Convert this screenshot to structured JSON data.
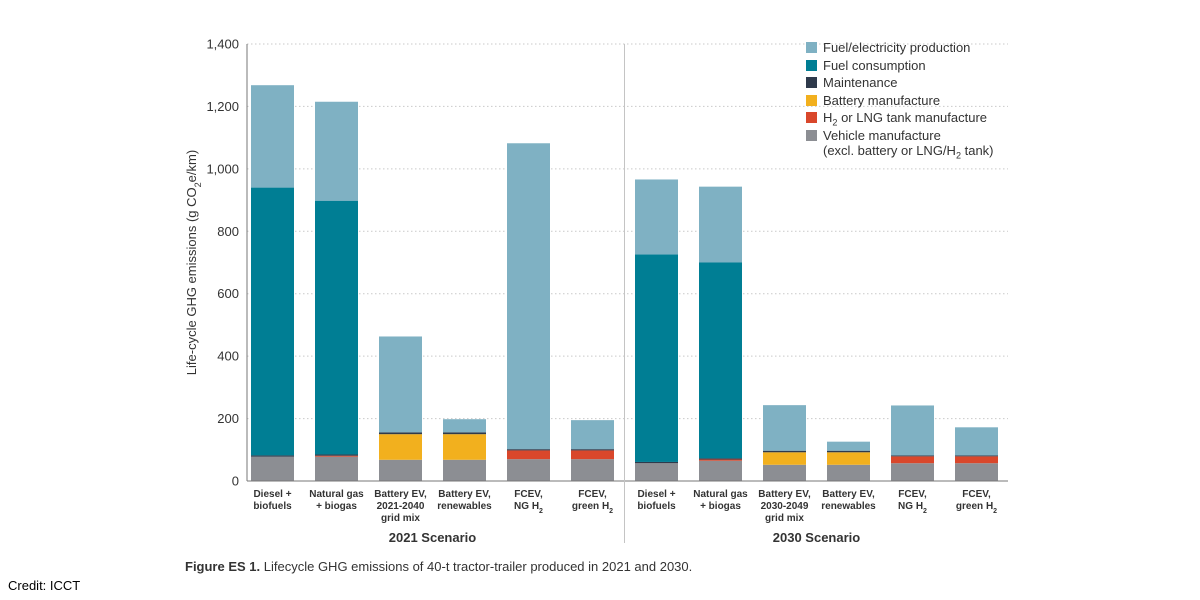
{
  "chart_data": {
    "type": "bar",
    "stacked": true,
    "ylabel": "Life-cycle GHG emissions (g CO2e/km)",
    "ylim": [
      0,
      1400
    ],
    "yticks": [
      "0",
      "200",
      "400",
      "600",
      "800",
      "1,000",
      "1,200",
      "1,400"
    ],
    "grid": true,
    "legend_position": "top-right",
    "groups": [
      {
        "label": "2021 Scenario",
        "categories": [
          "Diesel +\nbiofuels",
          "Natural gas\n+ biogas",
          "Battery EV,\n2021-2040\ngrid mix",
          "Battery EV,\nrenewables",
          "FCEV,\nNG H2",
          "FCEV,\ngreen H2"
        ]
      },
      {
        "label": "2030 Scenario",
        "categories": [
          "Diesel +\nbiofuels",
          "Natural gas\n+ biogas",
          "Battery EV,\n2030-2049\ngrid mix",
          "Battery EV,\nrenewables",
          "FCEV,\nNG H2",
          "FCEV,\ngreen H2"
        ]
      }
    ],
    "series": [
      {
        "name": "Vehicle manufacture\n(excl. battery or LNG/H2 tank)",
        "color": "#8c8e93",
        "values": [
          78,
          78,
          68,
          68,
          70,
          70,
          57,
          65,
          52,
          52,
          57,
          57
        ]
      },
      {
        "name": "H2 or LNG tank manufacture",
        "color": "#d9472b",
        "values": [
          0,
          3,
          0,
          0,
          28,
          28,
          0,
          4,
          0,
          0,
          22,
          22
        ]
      },
      {
        "name": "Battery manufacture",
        "color": "#f2b01e",
        "values": [
          0,
          0,
          82,
          82,
          0,
          0,
          0,
          0,
          40,
          40,
          0,
          0
        ]
      },
      {
        "name": "Maintenance",
        "color": "#2e3a4b",
        "values": [
          4,
          4,
          6,
          6,
          4,
          4,
          4,
          4,
          5,
          5,
          3,
          3
        ]
      },
      {
        "name": "Fuel consumption",
        "color": "#007e94",
        "values": [
          858,
          813,
          0,
          0,
          0,
          0,
          665,
          627,
          0,
          0,
          0,
          0
        ]
      },
      {
        "name": "Fuel/electricity production",
        "color": "#7fb1c3",
        "values": [
          328,
          317,
          307,
          42,
          980,
          93,
          240,
          243,
          146,
          29,
          160,
          90
        ]
      }
    ]
  },
  "caption": {
    "bold": "Figure ES 1.",
    "text": " Lifecycle GHG emissions of 40-t tractor-trailer produced in 2021 and 2030."
  },
  "credit": "Credit: ICCT"
}
